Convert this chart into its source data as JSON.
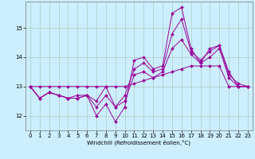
{
  "xlabel": "Windchill (Refroidissement éolien,°C)",
  "ylabel": "",
  "bg_color": "#cceeff",
  "grid_color": "#aaccbb",
  "line_color": "#990099",
  "xlim": [
    -0.5,
    23.5
  ],
  "ylim": [
    11.5,
    15.9
  ],
  "yticks": [
    12,
    13,
    14,
    15
  ],
  "xticks": [
    0,
    1,
    2,
    3,
    4,
    5,
    6,
    7,
    8,
    9,
    10,
    11,
    12,
    13,
    14,
    15,
    16,
    17,
    18,
    19,
    20,
    21,
    22,
    23
  ],
  "series": [
    [
      13.0,
      12.6,
      12.8,
      12.7,
      12.6,
      12.6,
      12.7,
      12.0,
      12.4,
      11.8,
      12.3,
      13.9,
      14.0,
      13.6,
      13.7,
      15.5,
      15.7,
      14.3,
      13.8,
      14.0,
      14.3,
      13.3,
      13.0,
      13.0
    ],
    [
      13.0,
      12.6,
      12.8,
      12.7,
      12.6,
      12.6,
      12.7,
      12.3,
      12.7,
      12.3,
      12.5,
      13.4,
      13.5,
      13.3,
      13.5,
      14.3,
      14.6,
      14.1,
      13.8,
      14.3,
      14.4,
      13.5,
      13.0,
      13.0
    ],
    [
      13.0,
      13.0,
      13.0,
      13.0,
      13.0,
      13.0,
      13.0,
      13.0,
      13.0,
      13.0,
      13.0,
      13.1,
      13.2,
      13.3,
      13.4,
      13.5,
      13.6,
      13.7,
      13.7,
      13.7,
      13.7,
      13.0,
      13.0,
      13.0
    ],
    [
      13.0,
      12.6,
      12.8,
      12.7,
      12.6,
      12.7,
      12.7,
      12.5,
      13.0,
      12.3,
      12.7,
      13.6,
      13.8,
      13.5,
      13.6,
      14.8,
      15.3,
      14.2,
      13.9,
      14.2,
      14.4,
      13.4,
      13.1,
      13.0
    ]
  ]
}
